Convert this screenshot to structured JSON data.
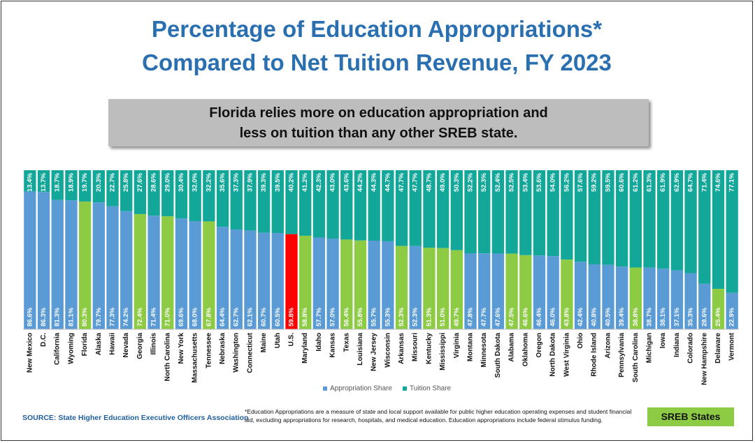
{
  "title_line1": "Percentage of Education Appropriations*",
  "title_line2": "Compared to Net Tuition Revenue, FY 2023",
  "callout_line1": "Florida relies more on education appropriation and",
  "callout_line2": "less on tuition than any other SREB state.",
  "source": "SOURCE: State Higher Education Executive Officers Association",
  "footnote": "*Education Appropriations are a measure of state and local support available for public higher education operating expenses and student financial aid, excluding appropriations for research, hospitals, and medical education. Education appropriations include federal stimulus funding.",
  "sreb_key_label": "SREB States",
  "colors": {
    "appropriation": "#5B9BD5",
    "tuition": "#13A79A",
    "sreb": "#8DCB45",
    "us": "#FF0000",
    "title": "#2A6FB0"
  },
  "chart_data": {
    "type": "bar",
    "stacked": true,
    "percent_stacked": true,
    "ylim": [
      0,
      100
    ],
    "legend_position": "bottom",
    "series": [
      {
        "name": "Appropriation Share",
        "values": [
          86.6,
          86.3,
          81.3,
          81.1,
          80.3,
          79.7,
          77.3,
          74.2,
          72.4,
          71.4,
          71.0,
          69.6,
          68.0,
          67.8,
          64.4,
          62.7,
          62.1,
          60.7,
          60.5,
          59.8,
          58.8,
          57.7,
          57.0,
          56.4,
          55.8,
          55.7,
          55.3,
          52.3,
          52.3,
          51.3,
          51.0,
          49.7,
          47.8,
          47.7,
          47.6,
          47.5,
          46.6,
          46.4,
          46.0,
          43.8,
          42.4,
          40.8,
          40.5,
          39.4,
          38.8,
          38.7,
          38.1,
          37.1,
          35.3,
          28.6,
          25.4,
          22.9
        ]
      },
      {
        "name": "Tuition Share",
        "values": [
          13.4,
          13.7,
          18.7,
          18.9,
          19.7,
          20.3,
          22.7,
          25.8,
          27.6,
          28.6,
          29.0,
          30.4,
          32.0,
          32.2,
          35.6,
          37.3,
          37.9,
          39.3,
          39.5,
          40.2,
          41.2,
          42.3,
          43.0,
          43.6,
          44.2,
          44.3,
          44.7,
          47.7,
          47.7,
          48.7,
          49.0,
          50.3,
          52.2,
          52.3,
          52.4,
          52.5,
          53.4,
          53.6,
          54.0,
          56.2,
          57.6,
          59.2,
          59.5,
          60.6,
          61.2,
          61.3,
          61.9,
          62.9,
          64.7,
          71.4,
          74.6,
          77.1
        ]
      }
    ],
    "categories": [
      "New Mexico",
      "D.C.",
      "California",
      "Wyoming",
      "Florida",
      "Alaska",
      "Hawaii",
      "Nevada",
      "Georgia",
      "Illinois",
      "North Carolina",
      "New York",
      "Massachusetts",
      "Tennessee",
      "Nebraska",
      "Washington",
      "Connecticut",
      "Maine",
      "Utah",
      "U.S.",
      "Maryland",
      "Idaho",
      "Kansas",
      "Texas",
      "Louisiana",
      "New Jersey",
      "Wisconsin",
      "Arkansas",
      "Missouri",
      "Kentucky",
      "Mississippi",
      "Virginia",
      "Montana",
      "Minnesota",
      "South Dakota",
      "Alabama",
      "Oklahoma",
      "Oregon",
      "North Dakota",
      "West Virginia",
      "Ohio",
      "Rhode Island",
      "Arizona",
      "Pennsylvania",
      "South Carolina",
      "Michigan",
      "Iowa",
      "Indiana",
      "Colorado",
      "New Hampshire",
      "Delaware",
      "Vermont"
    ],
    "sreb_states": [
      "Florida",
      "Georgia",
      "North Carolina",
      "Tennessee",
      "Maryland",
      "Texas",
      "Louisiana",
      "Arkansas",
      "Kentucky",
      "Mississippi",
      "Virginia",
      "Alabama",
      "Oklahoma",
      "West Virginia",
      "South Carolina",
      "Delaware"
    ],
    "highlight": "U.S."
  }
}
